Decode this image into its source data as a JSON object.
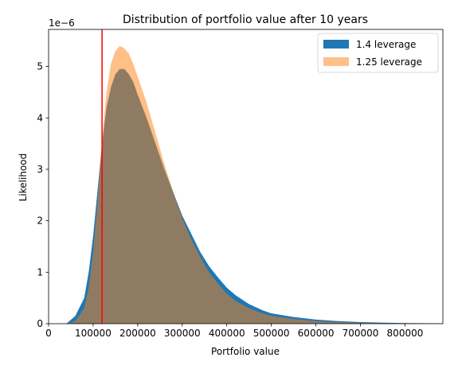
{
  "chart_data": {
    "type": "histogram",
    "title": "Distribution of portfolio value after 10 years",
    "xlabel": "Portfolio value",
    "ylabel": "Likelihood",
    "y_offset_label": "1e−6",
    "xlim": [
      0,
      885000
    ],
    "ylim": [
      0,
      5.72
    ],
    "x_ticks": [
      0,
      100000,
      200000,
      300000,
      400000,
      500000,
      600000,
      700000,
      800000
    ],
    "x_tick_labels": [
      "0",
      "100000",
      "200000",
      "300000",
      "400000",
      "500000",
      "600000",
      "700000",
      "800000"
    ],
    "y_ticks": [
      0,
      1,
      2,
      3,
      4,
      5
    ],
    "y_tick_labels": [
      "0",
      "1",
      "2",
      "3",
      "4",
      "5"
    ],
    "legend_position": "top-right",
    "vertical_line": {
      "x": 120000,
      "color": "#ff0000"
    },
    "series": [
      {
        "name": "1.4 leverage",
        "color": "#1f77b4",
        "opacity": 1.0,
        "x": [
          40000,
          60000,
          80000,
          90000,
          100000,
          110000,
          120000,
          130000,
          140000,
          150000,
          160000,
          170000,
          180000,
          190000,
          200000,
          220000,
          240000,
          260000,
          280000,
          300000,
          320000,
          340000,
          360000,
          380000,
          400000,
          420000,
          450000,
          480000,
          500000,
          550000,
          600000,
          650000,
          700000,
          750000,
          800000,
          850000,
          885000
        ],
        "y": [
          0.0,
          0.15,
          0.5,
          1.0,
          1.7,
          2.6,
          3.5,
          4.2,
          4.6,
          4.85,
          4.95,
          4.95,
          4.85,
          4.7,
          4.45,
          4.0,
          3.5,
          3.0,
          2.55,
          2.1,
          1.75,
          1.4,
          1.12,
          0.9,
          0.7,
          0.55,
          0.38,
          0.26,
          0.2,
          0.13,
          0.08,
          0.05,
          0.03,
          0.02,
          0.012,
          0.007,
          0.004
        ]
      },
      {
        "name": "1.25 leverage",
        "color": "#ff7f0e",
        "opacity": 0.5,
        "x": [
          40000,
          60000,
          80000,
          90000,
          100000,
          110000,
          120000,
          130000,
          140000,
          150000,
          160000,
          170000,
          180000,
          190000,
          200000,
          220000,
          240000,
          260000,
          280000,
          300000,
          320000,
          340000,
          360000,
          380000,
          400000,
          420000,
          450000,
          480000,
          500000,
          550000,
          600000,
          650000,
          700000,
          750000,
          800000,
          850000,
          885000
        ],
        "y": [
          0.0,
          0.05,
          0.3,
          0.7,
          1.4,
          2.4,
          3.6,
          4.5,
          5.05,
          5.3,
          5.4,
          5.35,
          5.25,
          5.05,
          4.8,
          4.3,
          3.7,
          3.1,
          2.55,
          2.05,
          1.65,
          1.3,
          1.0,
          0.78,
          0.58,
          0.44,
          0.3,
          0.2,
          0.15,
          0.09,
          0.05,
          0.03,
          0.017,
          0.01,
          0.006,
          0.003,
          0.002
        ]
      }
    ]
  }
}
